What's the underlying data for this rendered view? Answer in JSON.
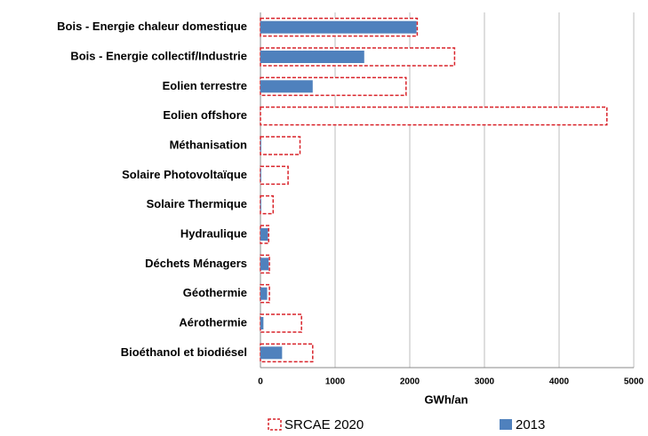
{
  "chart_data": {
    "type": "barh",
    "x_label": "GWh/an",
    "categories": [
      "Bois - Energie chaleur domestique",
      "Bois - Energie collectif/Industrie",
      "Eolien terrestre",
      "Eolien offshore",
      "Méthanisation",
      "Solaire Photovoltaïque",
      "Solaire Thermique",
      "Hydraulique",
      "Déchets Ménagers",
      "Géothermie",
      "Aérothermie",
      "Bioéthanol et biodiésel"
    ],
    "series": [
      {
        "name": "SRCAE 2020",
        "color": "#d9232a",
        "values": [
          2100,
          2600,
          1950,
          4640,
          530,
          370,
          170,
          110,
          120,
          120,
          550,
          700
        ]
      },
      {
        "name": "2013",
        "color": "#4f81bd",
        "values": [
          2090,
          1390,
          700,
          0,
          10,
          10,
          10,
          100,
          110,
          90,
          40,
          290
        ]
      }
    ],
    "xlim": [
      0,
      5000
    ],
    "xticks": [
      0,
      1000,
      2000,
      3000,
      4000,
      5000
    ],
    "grid": true
  }
}
